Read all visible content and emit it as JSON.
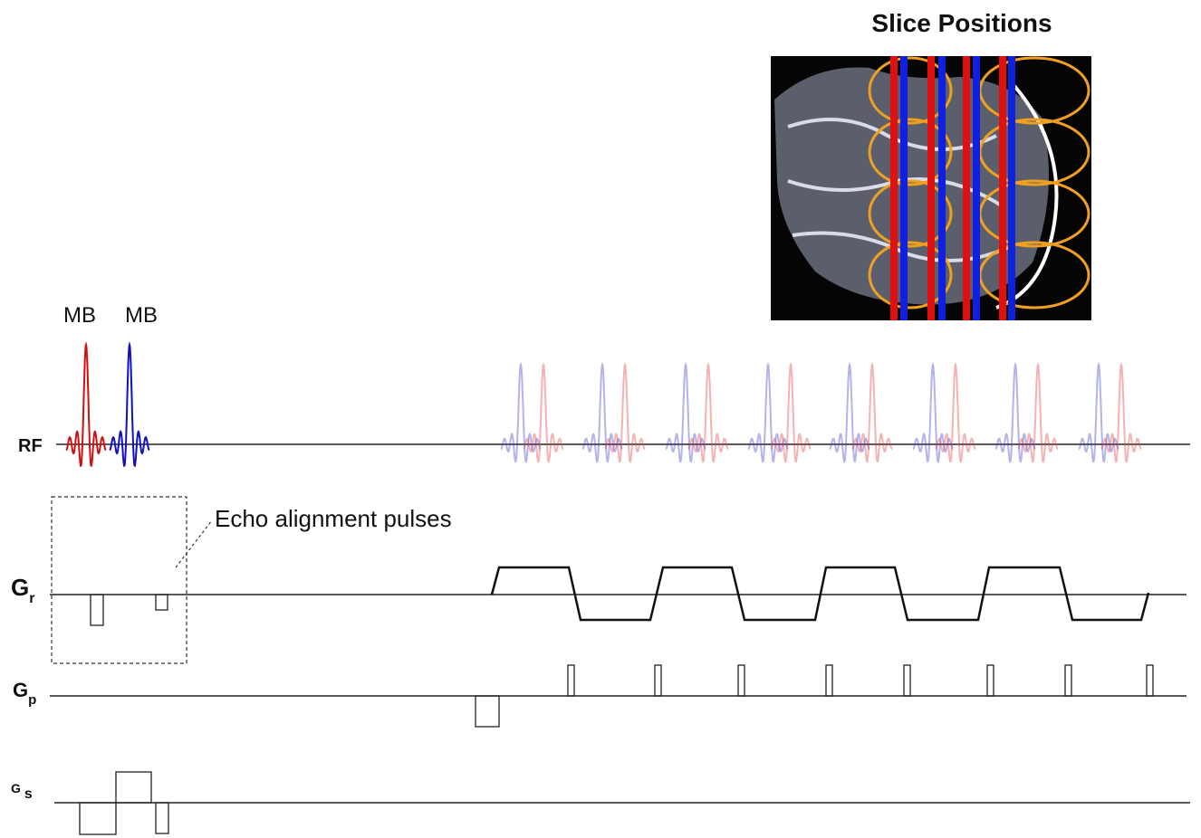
{
  "title": "Slice Positions",
  "pulse_labels": [
    "MB",
    "MB"
  ],
  "rows": [
    {
      "label": "RF"
    },
    {
      "label": "G",
      "subscript": "r"
    },
    {
      "label": "G",
      "subscript": "p"
    },
    {
      "label": "G",
      "subscript": "s"
    }
  ],
  "annotation": "Echo alignment pulses"
}
